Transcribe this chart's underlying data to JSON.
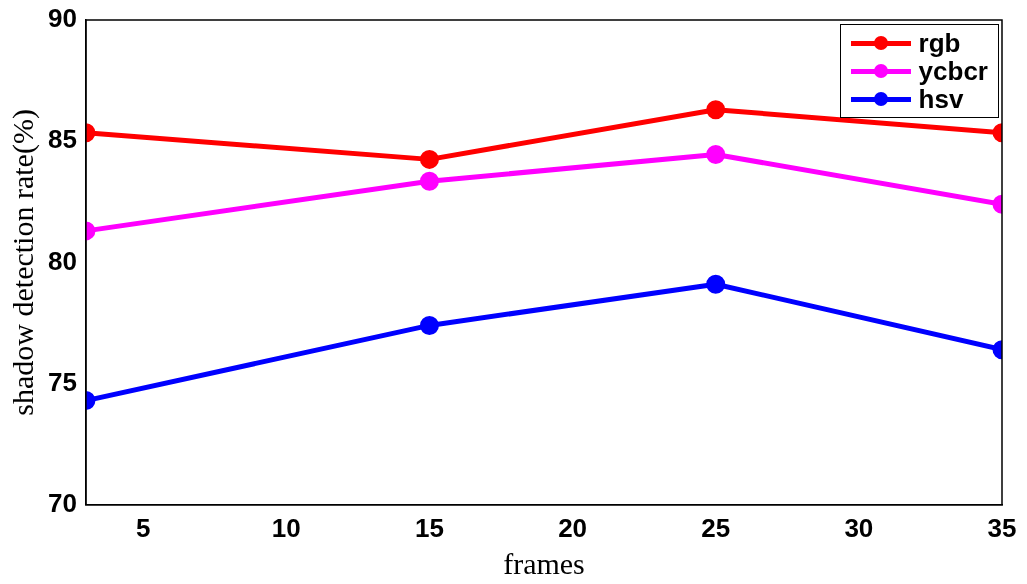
{
  "chart_data": {
    "type": "line",
    "xlabel": "frames",
    "ylabel": "shadow detection rate(%)",
    "x": [
      3,
      15,
      25,
      35
    ],
    "series": [
      {
        "name": "rgb",
        "color": "#ff0000",
        "values": [
          85.35,
          84.25,
          86.3,
          85.35
        ]
      },
      {
        "name": "ycbcr",
        "color": "#ff00ff",
        "values": [
          81.3,
          83.35,
          84.45,
          82.4
        ]
      },
      {
        "name": "hsv",
        "color": "#0000ff",
        "values": [
          74.3,
          77.4,
          79.1,
          76.4
        ]
      }
    ],
    "xlim": [
      3,
      35
    ],
    "xticks": [
      5,
      10,
      15,
      20,
      25,
      30,
      35
    ],
    "ylim": [
      70,
      90
    ],
    "yticks": [
      70,
      75,
      80,
      85,
      90
    ],
    "grid": false,
    "legend": "top right",
    "marker": "circle",
    "line_style": "solid"
  }
}
